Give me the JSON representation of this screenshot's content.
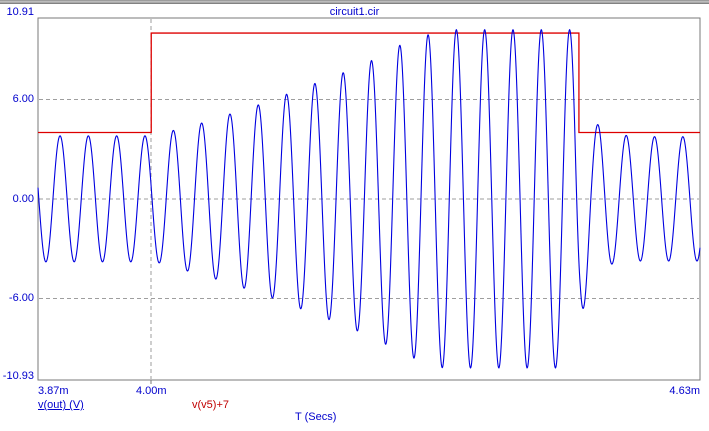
{
  "window": {
    "title": "circuit1.cir"
  },
  "colors": {
    "background": "#ffffff",
    "frame": "#7a7a7a",
    "grid": "#9e9e9e",
    "text_blue": "#0000cd",
    "text_red": "#c00000",
    "trace_blue": "#0000e0",
    "trace_red": "#dd0000"
  },
  "chart_data": {
    "type": "line",
    "title": "circuit1.cir",
    "xlabel": "T (Secs)",
    "x_unit": "ms",
    "x_range": [
      3.87,
      4.63
    ],
    "y_range": [
      -10.93,
      10.91
    ],
    "x_ticks": [
      {
        "label": "3.87m",
        "t": 3.87,
        "align": "left"
      },
      {
        "label": "4.00m",
        "t": 4.0,
        "align": "center"
      },
      {
        "label": "4.63m",
        "t": 4.63,
        "align": "right"
      }
    ],
    "y_ticks": [
      {
        "label": "10.91",
        "v": 10.91
      },
      {
        "label": "6.00",
        "v": 6.0
      },
      {
        "label": "0.00",
        "v": 0.0
      },
      {
        "label": "-6.00",
        "v": -6.0
      },
      {
        "label": "-10.93",
        "v": -10.93
      }
    ],
    "grid": {
      "h_values": [
        6.0,
        0.0,
        -6.0
      ],
      "v_values_t": [
        4.0
      ]
    },
    "legend_position": "bottom",
    "series": [
      {
        "name": "v(out) (V)",
        "kind": "am_sine",
        "color_key": "trace_blue",
        "carrier_period_ms": 0.0325,
        "peak_ref_ms": 3.8953,
        "envelope_t_amp": [
          [
            3.87,
            3.8
          ],
          [
            4.005,
            3.8
          ],
          [
            4.03,
            4.2
          ],
          [
            4.06,
            4.6
          ],
          [
            4.125,
            5.7
          ],
          [
            4.16,
            6.4
          ],
          [
            4.225,
            7.7
          ],
          [
            4.26,
            8.5
          ],
          [
            4.29,
            9.4
          ],
          [
            4.335,
            10.2
          ],
          [
            4.486,
            10.2
          ],
          [
            4.4926,
            7.3
          ],
          [
            4.506,
            4.7
          ],
          [
            4.53,
            3.9
          ],
          [
            4.56,
            3.75
          ],
          [
            4.63,
            3.75
          ]
        ]
      },
      {
        "name": "v(v5)+7",
        "kind": "step",
        "color_key": "trace_red",
        "points_t_v": [
          [
            3.87,
            4
          ],
          [
            4.0,
            4
          ],
          [
            4.0,
            10
          ],
          [
            4.491,
            10
          ],
          [
            4.491,
            4
          ],
          [
            4.63,
            4
          ]
        ]
      }
    ]
  }
}
